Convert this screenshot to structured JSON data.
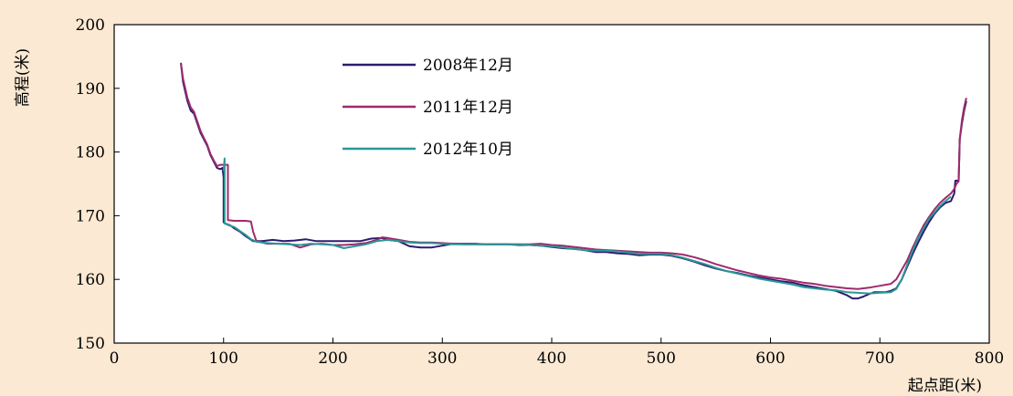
{
  "chart_data": {
    "type": "line",
    "title": "",
    "xlabel": "起点距(米)",
    "ylabel": "高程(米)",
    "xlim": [
      0,
      800
    ],
    "ylim": [
      150,
      200
    ],
    "xticks": [
      0,
      100,
      200,
      300,
      400,
      500,
      600,
      700,
      800
    ],
    "yticks": [
      150,
      160,
      170,
      180,
      190,
      200
    ],
    "grid": false,
    "legend_position": "top-center",
    "series": [
      {
        "name": "2008年12月",
        "color": "#2e1a6e",
        "points": [
          [
            61,
            194
          ],
          [
            63,
            191
          ],
          [
            65,
            189.5
          ],
          [
            67,
            188
          ],
          [
            70,
            186.5
          ],
          [
            73,
            186
          ],
          [
            76,
            184.5
          ],
          [
            79,
            183
          ],
          [
            82,
            182
          ],
          [
            85,
            181
          ],
          [
            88,
            179.5
          ],
          [
            91,
            178.5
          ],
          [
            94,
            177.5
          ],
          [
            97,
            177.3
          ],
          [
            99,
            177.5
          ],
          [
            100,
            176
          ],
          [
            100,
            169
          ],
          [
            101,
            168.8
          ],
          [
            103,
            168.7
          ],
          [
            106,
            168.5
          ],
          [
            110,
            168
          ],
          [
            115,
            167.5
          ],
          [
            120,
            166.8
          ],
          [
            127,
            166
          ],
          [
            135,
            166
          ],
          [
            145,
            166.2
          ],
          [
            155,
            166
          ],
          [
            165,
            166.1
          ],
          [
            175,
            166.3
          ],
          [
            185,
            166
          ],
          [
            195,
            166
          ],
          [
            205,
            166
          ],
          [
            215,
            166
          ],
          [
            225,
            166
          ],
          [
            235,
            166.4
          ],
          [
            245,
            166.5
          ],
          [
            250,
            166.2
          ],
          [
            260,
            166
          ],
          [
            270,
            165.2
          ],
          [
            280,
            165
          ],
          [
            290,
            165
          ],
          [
            300,
            165.3
          ],
          [
            310,
            165.6
          ],
          [
            320,
            165.6
          ],
          [
            330,
            165.6
          ],
          [
            340,
            165.5
          ],
          [
            350,
            165.5
          ],
          [
            360,
            165.5
          ],
          [
            370,
            165.4
          ],
          [
            380,
            165.4
          ],
          [
            390,
            165.3
          ],
          [
            400,
            165.1
          ],
          [
            410,
            164.9
          ],
          [
            420,
            164.8
          ],
          [
            430,
            164.6
          ],
          [
            440,
            164.3
          ],
          [
            450,
            164.3
          ],
          [
            460,
            164.1
          ],
          [
            470,
            164
          ],
          [
            480,
            163.8
          ],
          [
            490,
            163.9
          ],
          [
            500,
            163.9
          ],
          [
            510,
            163.7
          ],
          [
            520,
            163.3
          ],
          [
            530,
            162.8
          ],
          [
            540,
            162.2
          ],
          [
            550,
            161.7
          ],
          [
            560,
            161.3
          ],
          [
            570,
            161
          ],
          [
            580,
            160.6
          ],
          [
            590,
            160.3
          ],
          [
            600,
            160
          ],
          [
            610,
            159.7
          ],
          [
            620,
            159.5
          ],
          [
            630,
            159.1
          ],
          [
            640,
            158.8
          ],
          [
            650,
            158.5
          ],
          [
            660,
            158.2
          ],
          [
            670,
            157.5
          ],
          [
            675,
            157
          ],
          [
            680,
            157
          ],
          [
            685,
            157.3
          ],
          [
            690,
            157.7
          ],
          [
            695,
            158
          ],
          [
            700,
            158
          ],
          [
            705,
            158
          ],
          [
            710,
            158.2
          ],
          [
            715,
            158.6
          ],
          [
            720,
            160
          ],
          [
            725,
            162
          ],
          [
            730,
            164
          ],
          [
            735,
            165.8
          ],
          [
            740,
            167.5
          ],
          [
            745,
            169
          ],
          [
            750,
            170.3
          ],
          [
            755,
            171.3
          ],
          [
            760,
            172
          ],
          [
            765,
            172.3
          ],
          [
            768,
            173.5
          ],
          [
            769,
            175.5
          ],
          [
            772,
            175.5
          ],
          [
            773,
            182
          ],
          [
            775,
            184.5
          ],
          [
            777,
            186.5
          ],
          [
            779,
            188
          ]
        ]
      },
      {
        "name": "2011年12月",
        "color": "#9e2a6b",
        "points": [
          [
            61,
            194
          ],
          [
            63,
            191.5
          ],
          [
            65,
            190
          ],
          [
            67,
            188.5
          ],
          [
            70,
            187
          ],
          [
            73,
            186.3
          ],
          [
            76,
            184.8
          ],
          [
            79,
            183.3
          ],
          [
            82,
            182.2
          ],
          [
            85,
            181.2
          ],
          [
            88,
            179.7
          ],
          [
            91,
            178.7
          ],
          [
            94,
            177.8
          ],
          [
            97,
            178
          ],
          [
            100,
            178
          ],
          [
            104,
            178
          ],
          [
            104,
            169.3
          ],
          [
            110,
            169.2
          ],
          [
            120,
            169.2
          ],
          [
            125,
            169.1
          ],
          [
            127,
            167.5
          ],
          [
            130,
            166
          ],
          [
            140,
            165.6
          ],
          [
            150,
            165.6
          ],
          [
            160,
            165.6
          ],
          [
            170,
            165
          ],
          [
            180,
            165.5
          ],
          [
            190,
            165.6
          ],
          [
            200,
            165.4
          ],
          [
            210,
            165.4
          ],
          [
            220,
            165.5
          ],
          [
            230,
            165.7
          ],
          [
            240,
            166.2
          ],
          [
            245,
            166.6
          ],
          [
            250,
            166.5
          ],
          [
            260,
            166.2
          ],
          [
            270,
            165.9
          ],
          [
            280,
            165.8
          ],
          [
            290,
            165.8
          ],
          [
            300,
            165.7
          ],
          [
            310,
            165.6
          ],
          [
            320,
            165.5
          ],
          [
            330,
            165.5
          ],
          [
            340,
            165.5
          ],
          [
            350,
            165.5
          ],
          [
            360,
            165.5
          ],
          [
            370,
            165.5
          ],
          [
            380,
            165.5
          ],
          [
            390,
            165.6
          ],
          [
            400,
            165.4
          ],
          [
            410,
            165.3
          ],
          [
            420,
            165.1
          ],
          [
            430,
            164.9
          ],
          [
            440,
            164.7
          ],
          [
            450,
            164.6
          ],
          [
            460,
            164.5
          ],
          [
            470,
            164.4
          ],
          [
            480,
            164.3
          ],
          [
            490,
            164.2
          ],
          [
            500,
            164.2
          ],
          [
            510,
            164.1
          ],
          [
            520,
            163.9
          ],
          [
            530,
            163.5
          ],
          [
            540,
            163
          ],
          [
            550,
            162.4
          ],
          [
            560,
            161.9
          ],
          [
            570,
            161.4
          ],
          [
            580,
            161
          ],
          [
            590,
            160.6
          ],
          [
            600,
            160.3
          ],
          [
            610,
            160.1
          ],
          [
            620,
            159.8
          ],
          [
            630,
            159.5
          ],
          [
            640,
            159.3
          ],
          [
            650,
            159
          ],
          [
            660,
            158.8
          ],
          [
            670,
            158.6
          ],
          [
            680,
            158.5
          ],
          [
            690,
            158.7
          ],
          [
            700,
            159
          ],
          [
            710,
            159.3
          ],
          [
            715,
            160
          ],
          [
            720,
            161.5
          ],
          [
            725,
            163
          ],
          [
            730,
            165
          ],
          [
            735,
            166.8
          ],
          [
            740,
            168.5
          ],
          [
            745,
            169.8
          ],
          [
            750,
            171
          ],
          [
            755,
            172
          ],
          [
            760,
            172.8
          ],
          [
            765,
            173.5
          ],
          [
            768,
            174.2
          ],
          [
            770,
            175
          ],
          [
            772,
            175.4
          ],
          [
            773,
            182
          ],
          [
            775,
            185
          ],
          [
            777,
            187
          ],
          [
            779,
            188.5
          ]
        ]
      },
      {
        "name": "2012年10月",
        "color": "#2a9797",
        "points": [
          [
            100,
            177
          ],
          [
            101,
            179
          ],
          [
            101,
            168.8
          ],
          [
            105,
            168.5
          ],
          [
            110,
            168.2
          ],
          [
            115,
            167.6
          ],
          [
            120,
            167
          ],
          [
            125,
            166.3
          ],
          [
            130,
            165.9
          ],
          [
            140,
            165.7
          ],
          [
            150,
            165.6
          ],
          [
            160,
            165.5
          ],
          [
            170,
            165.4
          ],
          [
            180,
            165.6
          ],
          [
            190,
            165.5
          ],
          [
            200,
            165.4
          ],
          [
            210,
            164.9
          ],
          [
            220,
            165.2
          ],
          [
            230,
            165.5
          ],
          [
            240,
            166
          ],
          [
            250,
            166.2
          ],
          [
            260,
            166
          ],
          [
            270,
            165.8
          ],
          [
            280,
            165.7
          ],
          [
            290,
            165.7
          ],
          [
            300,
            165.6
          ],
          [
            310,
            165.5
          ],
          [
            320,
            165.5
          ],
          [
            330,
            165.5
          ],
          [
            340,
            165.5
          ],
          [
            350,
            165.5
          ],
          [
            360,
            165.5
          ],
          [
            370,
            165.5
          ],
          [
            380,
            165.4
          ],
          [
            390,
            165.3
          ],
          [
            400,
            165.2
          ],
          [
            410,
            165
          ],
          [
            420,
            164.8
          ],
          [
            430,
            164.6
          ],
          [
            440,
            164.5
          ],
          [
            450,
            164.5
          ],
          [
            460,
            164.4
          ],
          [
            470,
            164.2
          ],
          [
            480,
            164
          ],
          [
            490,
            164
          ],
          [
            500,
            164
          ],
          [
            510,
            163.8
          ],
          [
            520,
            163.4
          ],
          [
            530,
            162.9
          ],
          [
            540,
            162.4
          ],
          [
            550,
            161.8
          ],
          [
            560,
            161.3
          ],
          [
            570,
            160.9
          ],
          [
            580,
            160.5
          ],
          [
            590,
            160.1
          ],
          [
            600,
            159.8
          ],
          [
            610,
            159.5
          ],
          [
            620,
            159.2
          ],
          [
            630,
            158.8
          ],
          [
            640,
            158.6
          ],
          [
            650,
            158.4
          ],
          [
            660,
            158.3
          ],
          [
            670,
            158
          ],
          [
            680,
            157.9
          ],
          [
            690,
            157.8
          ],
          [
            700,
            157.9
          ],
          [
            710,
            158
          ],
          [
            715,
            158.5
          ],
          [
            720,
            160
          ],
          [
            725,
            162.3
          ],
          [
            730,
            164.5
          ],
          [
            735,
            166.5
          ],
          [
            740,
            168
          ],
          [
            745,
            169.5
          ],
          [
            750,
            170.5
          ],
          [
            755,
            171.5
          ],
          [
            760,
            172.3
          ],
          [
            765,
            173
          ]
        ]
      }
    ]
  }
}
